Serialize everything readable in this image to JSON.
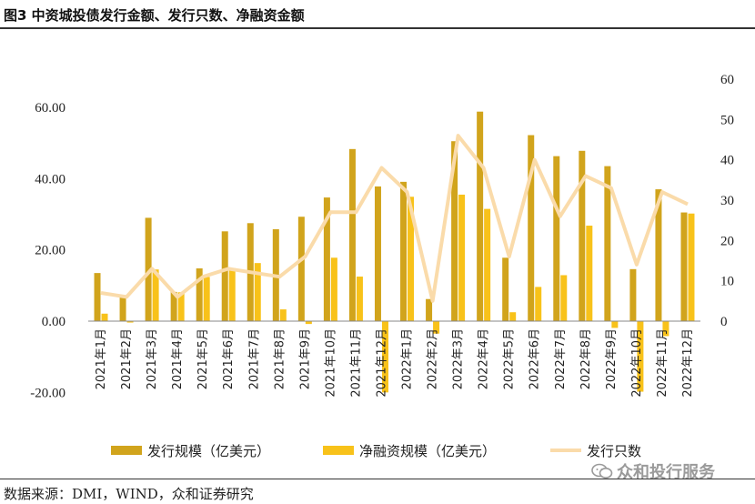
{
  "header": {
    "title": "图3 中资城投债发行金额、发行只数、净融资金额"
  },
  "footer": {
    "source": "数据来源：DMI，WIND，众和证券研究",
    "watermark": "众和投行服务"
  },
  "colors": {
    "issuance": "#D1A41C",
    "net": "#F8C21A",
    "count": "#FADBAA",
    "text": "#222222"
  },
  "chart_data": {
    "type": "bar+line",
    "categories": [
      "2021年1月",
      "2021年2月",
      "2021年3月",
      "2021年4月",
      "2021年5月",
      "2021年6月",
      "2021年7月",
      "2021年8月",
      "2021年9月",
      "2021年10月",
      "2021年11月",
      "2021年12月",
      "2022年1月",
      "2022年2月",
      "2022年3月",
      "2022年4月",
      "2022年5月",
      "2022年6月",
      "2022年7月",
      "2022年8月",
      "2022年9月",
      "2022年10月",
      "2022年11月",
      "2022年12月"
    ],
    "series": [
      {
        "name": "发行规模（亿美元）",
        "axis": "left",
        "kind": "bar",
        "values": [
          13.5,
          7.3,
          29.0,
          8.2,
          14.8,
          25.2,
          27.5,
          25.8,
          29.3,
          34.7,
          48.3,
          37.8,
          39.1,
          6.2,
          50.5,
          58.8,
          17.8,
          52.2,
          46.3,
          47.8,
          43.5,
          14.6,
          37.0,
          30.5
        ]
      },
      {
        "name": "净融资规模（亿美元）",
        "axis": "left",
        "kind": "bar",
        "values": [
          2.1,
          -0.4,
          14.5,
          8.1,
          12.4,
          14.9,
          16.3,
          3.3,
          -0.8,
          17.8,
          12.5,
          -20.0,
          34.9,
          -3.5,
          35.5,
          31.5,
          2.5,
          9.6,
          12.9,
          26.8,
          -1.9,
          -19.8,
          -4.2,
          30.2
        ]
      },
      {
        "name": "发行只数",
        "axis": "right",
        "kind": "line",
        "values": [
          7,
          6,
          13,
          6,
          11,
          13,
          12,
          11,
          16,
          27,
          27,
          38,
          32,
          5,
          46,
          38,
          16,
          40,
          26,
          36,
          33,
          14,
          32,
          29
        ]
      }
    ],
    "y_left": {
      "min": -20,
      "max": 60,
      "ticks": [
        "-20.00",
        "0.00",
        "20.00",
        "40.00",
        "60.00"
      ]
    },
    "y_right": {
      "min": 0,
      "max": 60,
      "ticks": [
        "0",
        "10",
        "20",
        "30",
        "40",
        "50",
        "60"
      ]
    },
    "legend": [
      "发行规模（亿美元）",
      "净融资规模（亿美元）",
      "发行只数"
    ]
  }
}
